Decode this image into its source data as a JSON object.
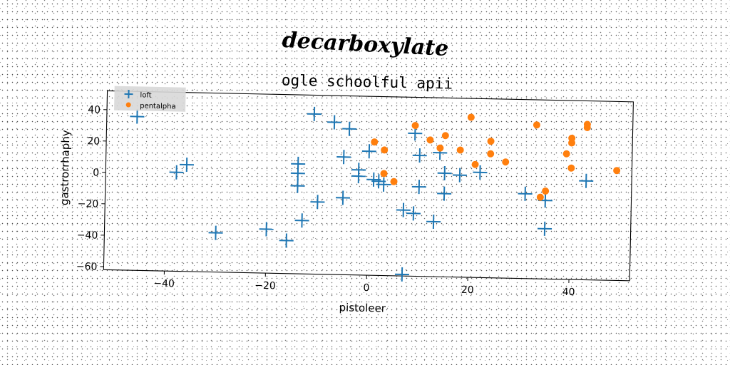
{
  "suptitle": "decarboxylate",
  "chart_data": {
    "type": "scatter",
    "title": "ogle schoolful apii",
    "xlabel": "pistoleer",
    "ylabel": "gastrorrhaphy",
    "xlim": [
      -52,
      52
    ],
    "ylim": [
      -62,
      52
    ],
    "xticks": [
      -40,
      -20,
      0,
      20,
      40
    ],
    "yticks": [
      40,
      20,
      0,
      -20,
      -40,
      -60
    ],
    "grid": false,
    "legend_position": "upper-left",
    "series": [
      {
        "name": "loft",
        "marker": "plus",
        "color": "#1f77b4",
        "points": [
          [
            -46,
            36
          ],
          [
            -38,
            1
          ],
          [
            -36,
            6
          ],
          [
            -30,
            -37
          ],
          [
            -20,
            -34
          ],
          [
            -16,
            -41
          ],
          [
            -14,
            8
          ],
          [
            -14,
            2
          ],
          [
            -14,
            -6
          ],
          [
            -13,
            -28
          ],
          [
            -10,
            -16
          ],
          [
            -11,
            40
          ],
          [
            -7,
            35
          ],
          [
            -5,
            13
          ],
          [
            -5,
            -13
          ],
          [
            -4,
            31
          ],
          [
            -2,
            1
          ],
          [
            -2,
            5
          ],
          [
            0,
            17
          ],
          [
            1,
            -1
          ],
          [
            2,
            -2
          ],
          [
            3,
            -4
          ],
          [
            7,
            -20
          ],
          [
            7,
            -61
          ],
          [
            9,
            -22
          ],
          [
            9,
            29
          ],
          [
            10,
            15
          ],
          [
            10,
            -5
          ],
          [
            13,
            -27
          ],
          [
            14,
            17
          ],
          [
            15,
            -9
          ],
          [
            15,
            4
          ],
          [
            18,
            3
          ],
          [
            22,
            5
          ],
          [
            31,
            -8
          ],
          [
            35,
            -30
          ],
          [
            35,
            -12
          ],
          [
            43,
            1
          ]
        ]
      },
      {
        "name": "pentalpha",
        "marker": "circle",
        "color": "#ff7f0e",
        "points": [
          [
            1,
            23
          ],
          [
            3,
            18
          ],
          [
            3,
            3
          ],
          [
            5,
            -2
          ],
          [
            9,
            34
          ],
          [
            12,
            25
          ],
          [
            14,
            20
          ],
          [
            15,
            28
          ],
          [
            18,
            19
          ],
          [
            20,
            40
          ],
          [
            21,
            10
          ],
          [
            24,
            25
          ],
          [
            24,
            17
          ],
          [
            27,
            12
          ],
          [
            33,
            36
          ],
          [
            34,
            -10
          ],
          [
            35,
            -6
          ],
          [
            39,
            18
          ],
          [
            40,
            28
          ],
          [
            40,
            25
          ],
          [
            40,
            9
          ],
          [
            43,
            37
          ],
          [
            43,
            35
          ],
          [
            49,
            8
          ]
        ]
      }
    ]
  }
}
